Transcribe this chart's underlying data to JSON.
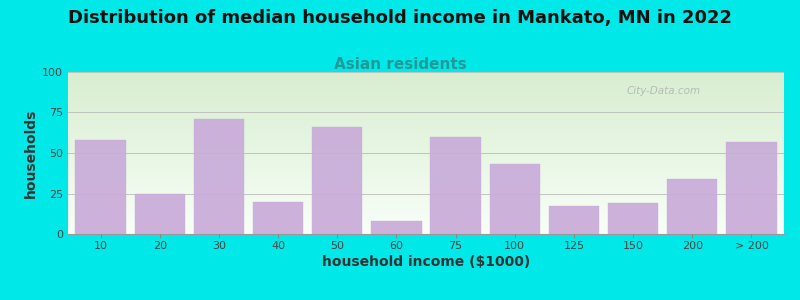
{
  "title": "Distribution of median household income in Mankato, MN in 2022",
  "subtitle": "Asian residents",
  "xlabel": "household income ($1000)",
  "ylabel": "households",
  "categories": [
    "10",
    "20",
    "30",
    "40",
    "50",
    "60",
    "75",
    "100",
    "125",
    "150",
    "200",
    "> 200"
  ],
  "values": [
    58,
    25,
    71,
    20,
    66,
    8,
    60,
    43,
    17,
    19,
    34,
    57
  ],
  "bar_color": "#c9acd9",
  "outer_background": "#00e8e8",
  "bg_top_color": "#d8eed0",
  "bg_bottom_color": "#f5fdf5",
  "ylim": [
    0,
    100
  ],
  "yticks": [
    0,
    25,
    50,
    75,
    100
  ],
  "title_fontsize": 13,
  "subtitle_fontsize": 11,
  "axis_label_fontsize": 10,
  "tick_fontsize": 8,
  "watermark": "City-Data.com"
}
